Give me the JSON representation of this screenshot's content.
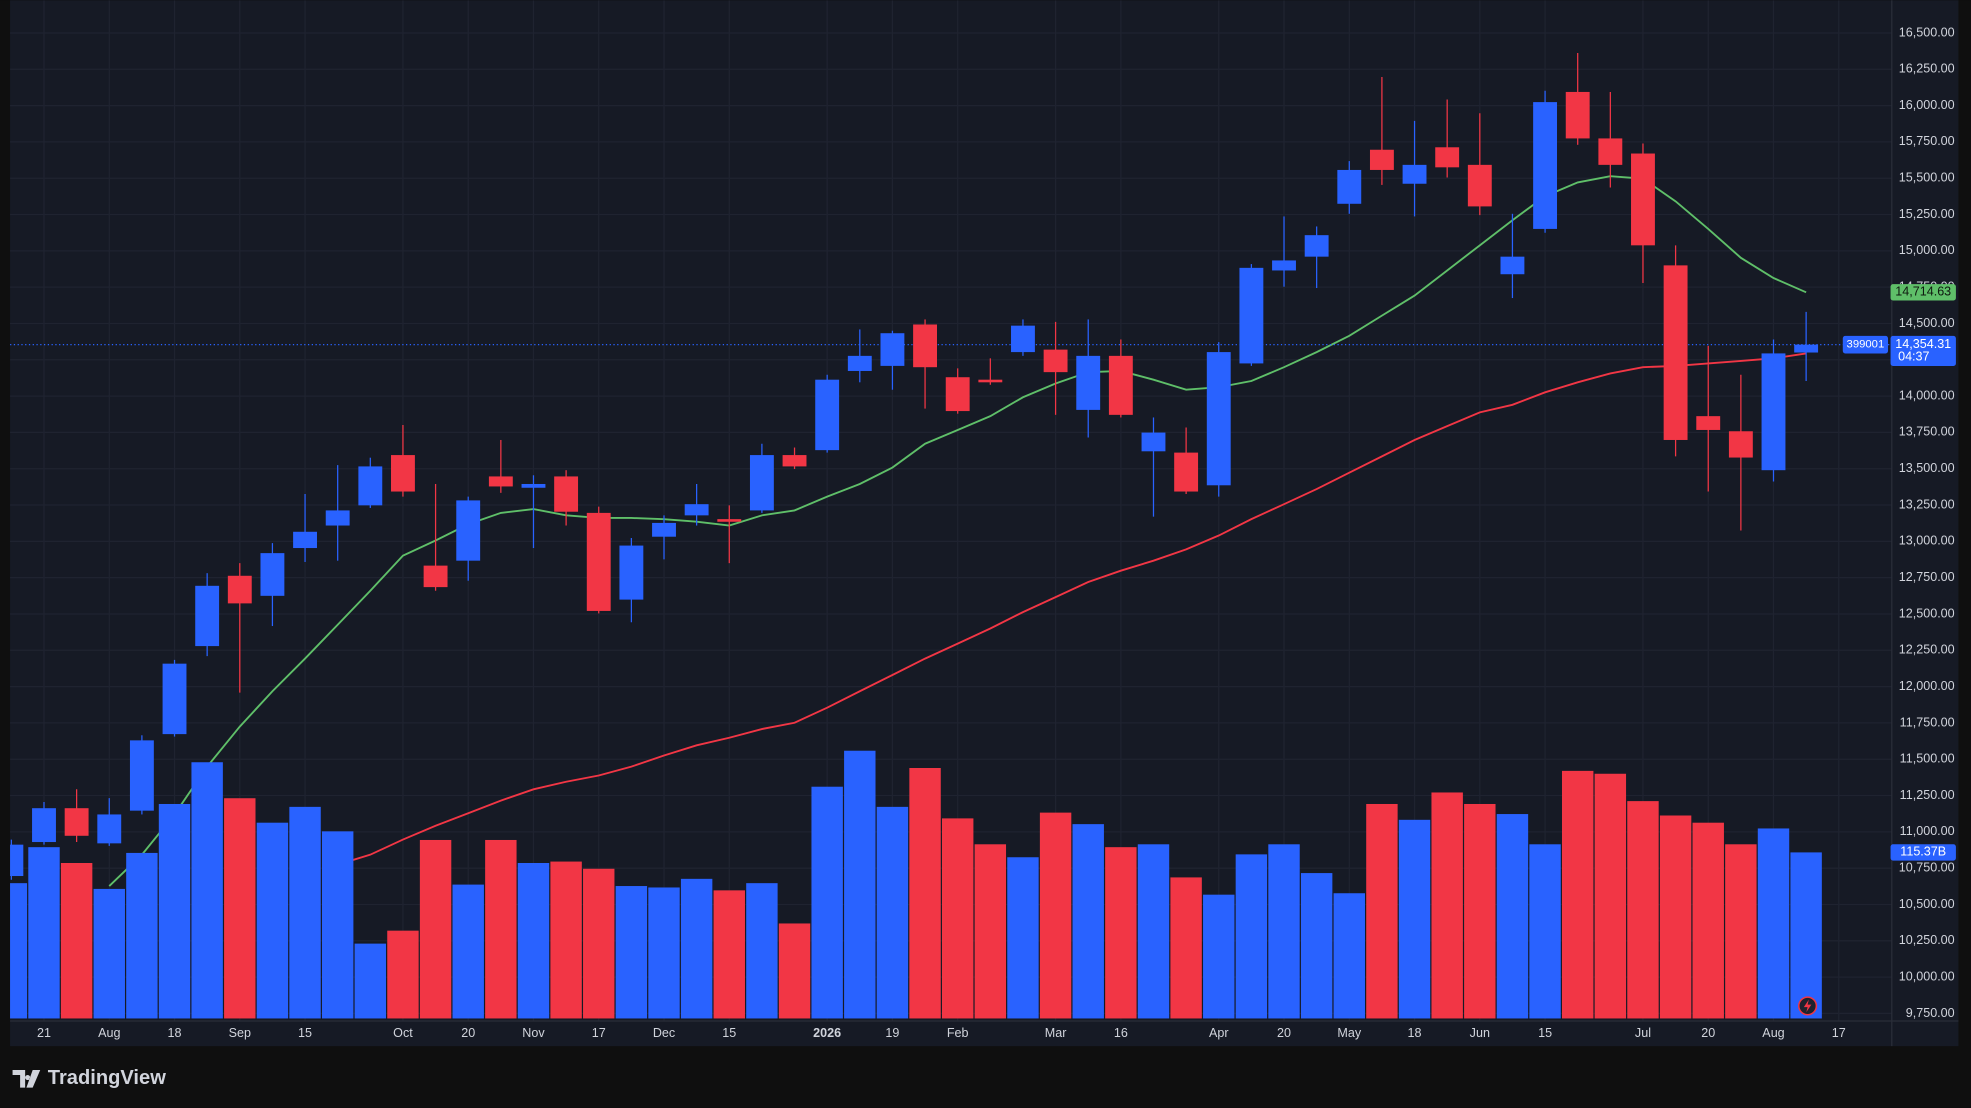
{
  "chart_data": {
    "type": "candlestick",
    "symbol": "399001",
    "brand": "TradingView",
    "categories": [
      null,
      "21",
      null,
      "Aug",
      null,
      "18",
      null,
      "Sep",
      null,
      "15",
      null,
      null,
      "Oct",
      null,
      "20",
      null,
      "Nov",
      null,
      "17",
      null,
      "Dec",
      null,
      "15",
      null,
      null,
      "2026",
      null,
      "19",
      null,
      "Feb",
      null,
      null,
      "Mar",
      null,
      "16",
      null,
      null,
      "Apr",
      null,
      "20",
      null,
      "May",
      null,
      "18",
      null,
      "Jun",
      null,
      "15",
      null,
      null,
      "Jul",
      null,
      "20",
      null,
      "Aug",
      null,
      "17"
    ],
    "bold_category": "2026",
    "open": [
      10696,
      10930,
      11163,
      10921,
      11146,
      11673,
      12279,
      12763,
      12625,
      12954,
      13109,
      13248,
      13594,
      12833,
      12867,
      13447,
      13369,
      13447,
      13196,
      12599,
      13032,
      13179,
      13153,
      13213,
      13594,
      13628,
      14173,
      14208,
      14493,
      14130,
      14113,
      14303,
      14320,
      13905,
      14277,
      13620,
      13611,
      13386,
      14225,
      14865,
      14960,
      15324,
      15696,
      15462,
      15713,
      15592,
      14839,
      15151,
      16094,
      15774,
      15670,
      14900,
      13862,
      13758,
      13490,
      14300,
      null
    ],
    "high": [
      10947,
      11206,
      11293,
      11232,
      11665,
      12184,
      12781,
      12850,
      12988,
      13326,
      13525,
      13576,
      13801,
      13395,
      13308,
      13698,
      13455,
      13490,
      13239,
      13023,
      13179,
      13395,
      13248,
      13672,
      13646,
      14147,
      14459,
      14450,
      14528,
      14191,
      14260,
      14528,
      14511,
      14528,
      14390,
      13853,
      13784,
      14372,
      14909,
      15237,
      15168,
      15618,
      16197,
      15895,
      16042,
      15947,
      15255,
      16102,
      16362,
      16094,
      15739,
      15038,
      14346,
      14147,
      14390,
      14580,
      null
    ],
    "low": [
      10670,
      10912,
      10930,
      10904,
      11120,
      11656,
      12210,
      11959,
      12417,
      12858,
      12867,
      13230,
      13308,
      12660,
      12729,
      13334,
      12954,
      13109,
      12504,
      12443,
      12876,
      13109,
      12850,
      13196,
      13498,
      13611,
      14095,
      14044,
      13914,
      13879,
      14078,
      14277,
      13871,
      13715,
      13853,
      13170,
      13326,
      13308,
      14208,
      14753,
      14744,
      15255,
      15454,
      15237,
      15505,
      15246,
      14675,
      15125,
      15730,
      15436,
      14779,
      13585,
      13343,
      13075,
      13412,
      14104,
      null
    ],
    "close": [
      10912,
      11163,
      10973,
      11120,
      11630,
      12158,
      12694,
      12573,
      12919,
      13066,
      13213,
      13516,
      13343,
      12685,
      13282,
      13378,
      13395,
      13204,
      12521,
      12971,
      13127,
      13256,
      13135,
      13594,
      13516,
      14113,
      14277,
      14433,
      14199,
      13897,
      14095,
      14485,
      14165,
      14277,
      13871,
      13749,
      13343,
      14303,
      14883,
      14934,
      15108,
      15557,
      15557,
      15592,
      15575,
      15306,
      14960,
      16024,
      15774,
      15592,
      15038,
      13698,
      13767,
      13577,
      14294,
      14354.31,
      null
    ],
    "last_price_tag": "14,354.31",
    "countdown": "04:37",
    "volume": [
      94,
      119,
      108,
      90,
      115,
      149,
      178,
      153,
      136,
      147,
      130,
      52,
      61,
      124,
      93,
      124,
      108,
      109,
      104,
      92,
      91,
      97,
      89,
      94,
      66,
      161,
      186,
      147,
      174,
      139,
      121,
      112,
      143,
      135,
      119,
      121,
      98,
      86,
      114,
      121,
      101,
      87,
      149,
      138,
      157,
      149,
      142,
      121,
      172,
      170,
      151,
      141,
      136,
      121,
      132,
      115.37,
      null
    ],
    "volume_tag": "115.37B",
    "up_color": "#2962ff",
    "down_color": "#f23645",
    "series": [
      {
        "color": "#5fbf69",
        "tag": "14,714.63",
        "values": [
          null,
          null,
          null,
          10627,
          10843,
          11120,
          11449,
          11725,
          11968,
          12193,
          12426,
          12660,
          12902,
          13006,
          13118,
          13196,
          13222,
          13179,
          13161,
          13161,
          13153,
          13135,
          13109,
          13179,
          13213,
          13308,
          13395,
          13508,
          13672,
          13767,
          13862,
          13992,
          14087,
          14165,
          14173,
          14113,
          14044,
          14061,
          14104,
          14199,
          14303,
          14415,
          14554,
          14692,
          14865,
          15038,
          15211,
          15376,
          15471,
          15514,
          15497,
          15341,
          15151,
          14952,
          14813,
          14714.63,
          null
        ]
      },
      {
        "color": "#f23645",
        "values": [
          null,
          null,
          null,
          null,
          null,
          null,
          null,
          null,
          null,
          null,
          10774,
          10843,
          10947,
          11042,
          11128,
          11215,
          11293,
          11345,
          11388,
          11449,
          11526,
          11596,
          11648,
          11708,
          11751,
          11855,
          11968,
          12080,
          12193,
          12296,
          12400,
          12513,
          12616,
          12720,
          12798,
          12867,
          12945,
          13040,
          13153,
          13256,
          13360,
          13473,
          13585,
          13698,
          13793,
          13888,
          13940,
          14026,
          14095,
          14156,
          14199,
          14208,
          14225,
          14242,
          14260,
          14294,
          null
        ]
      }
    ],
    "ylim": [
      9750,
      16500
    ],
    "yticks": [
      {
        "value": 9750,
        "label": "9,750.00"
      },
      {
        "value": 10000,
        "label": "10,000.00"
      },
      {
        "value": 10250,
        "label": "10,250.00"
      },
      {
        "value": 10500,
        "label": "10,500.00"
      },
      {
        "value": 10750,
        "label": "10,750.00"
      },
      {
        "value": 11000,
        "label": "11,000.00"
      },
      {
        "value": 11250,
        "label": "11,250.00"
      },
      {
        "value": 11500,
        "label": "11,500.00"
      },
      {
        "value": 11750,
        "label": "11,750.00"
      },
      {
        "value": 12000,
        "label": "12,000.00"
      },
      {
        "value": 12250,
        "label": "12,250.00"
      },
      {
        "value": 12500,
        "label": "12,500.00"
      },
      {
        "value": 12750,
        "label": "12,750.00"
      },
      {
        "value": 13000,
        "label": "13,000.00"
      },
      {
        "value": 13250,
        "label": "13,250.00"
      },
      {
        "value": 13500,
        "label": "13,500.00"
      },
      {
        "value": 13750,
        "label": "13,750.00"
      },
      {
        "value": 14000,
        "label": "14,000.00"
      },
      {
        "value": 14250,
        "label": "14,250.00"
      },
      {
        "value": 14500,
        "label": "14,500.00"
      },
      {
        "value": 14750,
        "label": "14,750.00"
      },
      {
        "value": 15000,
        "label": "15,000.00"
      },
      {
        "value": 15250,
        "label": "15,250.00"
      },
      {
        "value": 15500,
        "label": "15,500.00"
      },
      {
        "value": 15750,
        "label": "15,750.00"
      },
      {
        "value": 16000,
        "label": "16,000.00"
      },
      {
        "value": 16250,
        "label": "16,250.00"
      },
      {
        "value": 16500,
        "label": "16,500.00"
      }
    ],
    "grid": true
  }
}
